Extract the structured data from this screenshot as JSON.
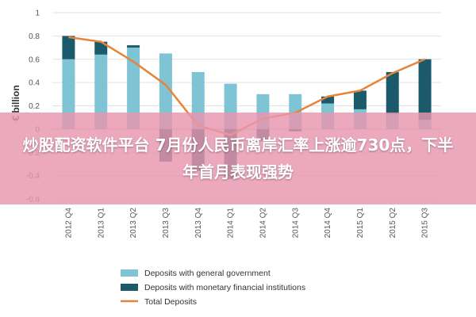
{
  "chart_data": {
    "type": "bar",
    "stacked": true,
    "ylabel": "€ billion",
    "ylim": [
      -0.6,
      1.0
    ],
    "yticks": [
      1,
      0.8,
      0.6,
      0.4,
      0.2,
      0,
      -0.2,
      -0.4,
      -0.6
    ],
    "categories": [
      "2012 Q4",
      "2013 Q1",
      "2013 Q2",
      "2013 Q3",
      "2013 Q4",
      "2014 Q1",
      "2014 Q2",
      "2014 Q3",
      "2014 Q4",
      "2015 Q1",
      "2015 Q2",
      "2015 Q3"
    ],
    "series": [
      {
        "name": "Deposits with general government",
        "type": "bar",
        "color": "#7fc4d4",
        "values": [
          0.6,
          0.64,
          0.7,
          0.65,
          0.49,
          0.39,
          0.3,
          0.3,
          0.22,
          0.17,
          0.13,
          0.08
        ]
      },
      {
        "name": "Deposits with monetary financial institutions",
        "type": "bar",
        "color": "#1b5a6a",
        "values": [
          0.2,
          0.11,
          0.02,
          -0.28,
          -0.36,
          -0.43,
          -0.1,
          -0.02,
          0.06,
          0.16,
          0.36,
          0.52
        ]
      },
      {
        "name": "Total Deposits",
        "type": "line",
        "color": "#e8843a",
        "values": [
          0.79,
          0.75,
          0.58,
          0.38,
          0.03,
          -0.05,
          0.09,
          0.14,
          0.28,
          0.33,
          0.48,
          0.6
        ]
      }
    ],
    "legend_position": "bottom",
    "grid": true
  },
  "banner": {
    "text": "炒股配资软件平台 7月份人民币离岸汇率上涨逾730点，下半年首月表现强势"
  }
}
